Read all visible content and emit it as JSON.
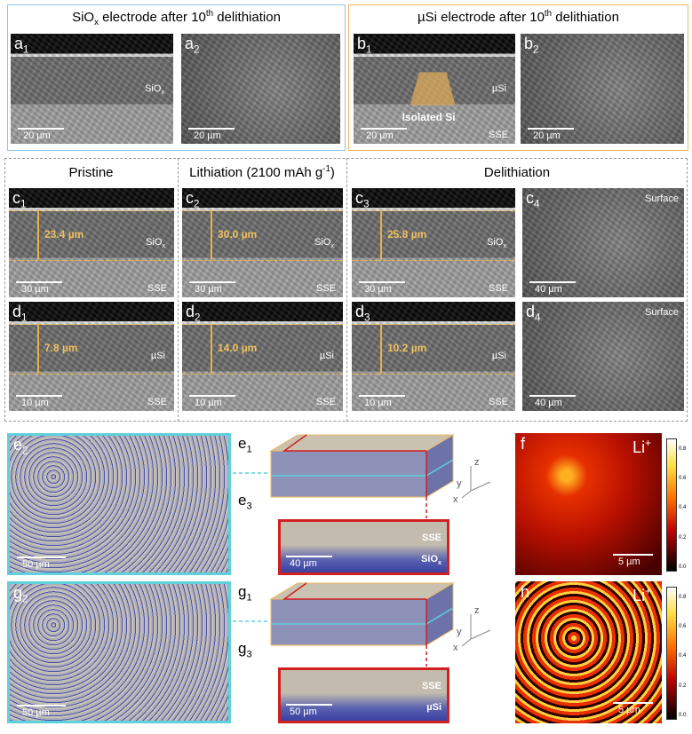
{
  "top": {
    "siox_title": [
      {
        "text": "SiO"
      },
      {
        "text": "x",
        "style": "sub"
      },
      {
        "text": " electrode after 10"
      },
      {
        "text": "th",
        "style": "sup"
      },
      {
        "text": " delithiation"
      }
    ],
    "usi_title": [
      {
        "text": "µSi electrode after 10"
      },
      {
        "text": "th",
        "style": "sup"
      },
      {
        "text": " delithiation"
      }
    ],
    "panels": [
      {
        "label": [
          {
            "text": "a"
          },
          {
            "text": "1",
            "style": "sub"
          }
        ],
        "material": [
          {
            "text": "SiO"
          },
          {
            "text": "x",
            "style": "sub"
          }
        ],
        "scale": "20 µm"
      },
      {
        "label": [
          {
            "text": "a"
          },
          {
            "text": "2",
            "style": "sub"
          }
        ],
        "scale": "20 µm"
      },
      {
        "label": [
          {
            "text": "b"
          },
          {
            "text": "1",
            "style": "sub"
          }
        ],
        "material": [
          {
            "text": "µSi"
          }
        ],
        "note": "Isolated Si",
        "substrate": "SSE",
        "scale": "20 µm"
      },
      {
        "label": [
          {
            "text": "b"
          },
          {
            "text": "2",
            "style": "sub"
          }
        ],
        "scale": "20 µm"
      }
    ]
  },
  "middle": {
    "columns": [
      [
        {
          "text": "Pristine"
        }
      ],
      [
        {
          "text": "Lithiation (2100 mAh g"
        },
        {
          "text": "-1",
          "style": "sup"
        },
        {
          "text": ")"
        }
      ],
      [
        {
          "text": "Delithiation"
        }
      ]
    ],
    "rows": [
      [
        {
          "label": [
            {
              "text": "c"
            },
            {
              "text": "1",
              "style": "sub"
            }
          ],
          "thickness": "23.4 µm",
          "material": [
            {
              "text": "SiO"
            },
            {
              "text": "x",
              "style": "sub"
            }
          ],
          "substrate": "SSE",
          "scale": "30 µm"
        },
        {
          "label": [
            {
              "text": "c"
            },
            {
              "text": "2",
              "style": "sub"
            }
          ],
          "thickness": "30.0 µm",
          "material": [
            {
              "text": "SiO"
            },
            {
              "text": "x",
              "style": "sub"
            }
          ],
          "substrate": "SSE",
          "scale": "30 µm"
        },
        {
          "label": [
            {
              "text": "c"
            },
            {
              "text": "3",
              "style": "sub"
            }
          ],
          "thickness": "25.8 µm",
          "material": [
            {
              "text": "SiO"
            },
            {
              "text": "x",
              "style": "sub"
            }
          ],
          "substrate": "SSE",
          "scale": "30 µm"
        },
        {
          "label": [
            {
              "text": "c"
            },
            {
              "text": "4",
              "style": "sub"
            }
          ],
          "note": "Surface",
          "scale": "40 µm"
        }
      ],
      [
        {
          "label": [
            {
              "text": "d"
            },
            {
              "text": "1",
              "style": "sub"
            }
          ],
          "thickness": "7.8 µm",
          "material": [
            {
              "text": "µSi"
            }
          ],
          "substrate": "SSE",
          "scale": "10 µm"
        },
        {
          "label": [
            {
              "text": "d"
            },
            {
              "text": "2",
              "style": "sub"
            }
          ],
          "thickness": "14.0 µm",
          "material": [
            {
              "text": "µSi"
            }
          ],
          "substrate": "SSE",
          "scale": "10 µm"
        },
        {
          "label": [
            {
              "text": "d"
            },
            {
              "text": "3",
              "style": "sub"
            }
          ],
          "thickness": "10.2 µm",
          "material": [
            {
              "text": "µSi"
            }
          ],
          "substrate": "SSE",
          "scale": "10 µm"
        },
        {
          "label": [
            {
              "text": "d"
            },
            {
              "text": "4",
              "style": "sub"
            }
          ],
          "note": "Surface",
          "scale": "40 µm"
        }
      ]
    ]
  },
  "bottom": [
    {
      "map": {
        "label": [
          {
            "text": "e"
          },
          {
            "text": "2",
            "style": "sub"
          }
        ],
        "scale": "50 µm"
      },
      "volume": {
        "label": [
          {
            "text": "e"
          },
          {
            "text": "1",
            "style": "sub"
          }
        ],
        "axes": [
          "z",
          "y",
          "x"
        ]
      },
      "slice": {
        "label": [
          {
            "text": "e"
          },
          {
            "text": "3",
            "style": "sub"
          }
        ],
        "scale": "40 µm",
        "top": "SSE",
        "bottom": [
          {
            "text": "SiO"
          },
          {
            "text": "x",
            "style": "sub"
          }
        ]
      },
      "tof": {
        "label": [
          {
            "text": "f"
          }
        ],
        "ion": [
          {
            "text": "Li"
          },
          {
            "text": "+",
            "style": "sup"
          }
        ],
        "scale": "5 µm",
        "colorbar": [
          "0.0",
          "0.2",
          "0.4",
          "0.6",
          "0.8"
        ]
      }
    },
    {
      "map": {
        "label": [
          {
            "text": "g"
          },
          {
            "text": "2",
            "style": "sub"
          }
        ],
        "scale": "50 µm"
      },
      "volume": {
        "label": [
          {
            "text": "g"
          },
          {
            "text": "1",
            "style": "sub"
          }
        ],
        "axes": [
          "z",
          "y",
          "x"
        ]
      },
      "slice": {
        "label": [
          {
            "text": "g"
          },
          {
            "text": "3",
            "style": "sub"
          }
        ],
        "scale": "50 µm",
        "top": "SSE",
        "bottom": [
          {
            "text": "µSi"
          }
        ]
      },
      "tof": {
        "label": [
          {
            "text": "h"
          }
        ],
        "ion": [
          {
            "text": "Li"
          },
          {
            "text": "+",
            "style": "sup"
          }
        ],
        "scale": "5 µm",
        "colorbar": [
          "0.0",
          "0.2",
          "0.4",
          "0.6",
          "0.8"
        ]
      }
    }
  ]
}
